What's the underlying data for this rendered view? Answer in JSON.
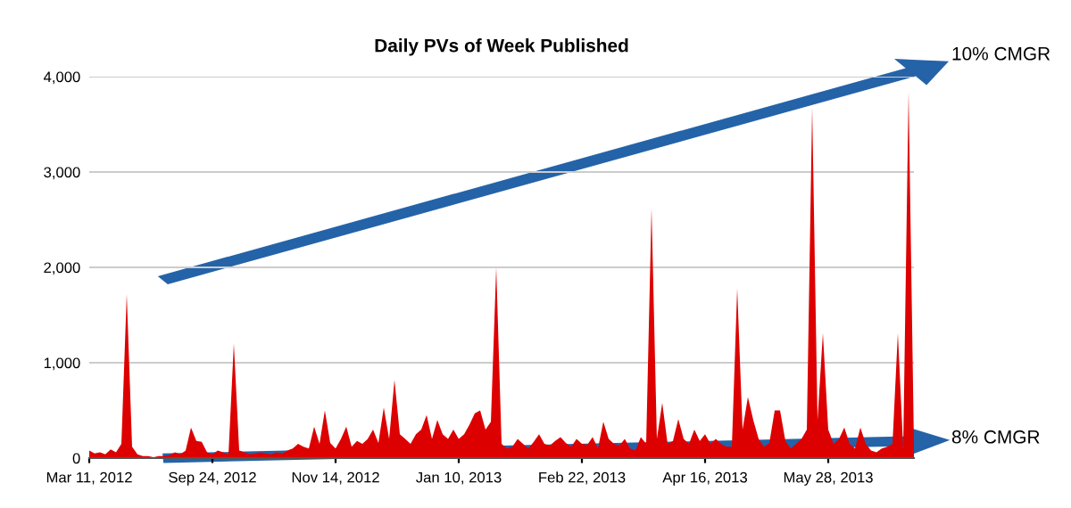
{
  "chart_data": {
    "type": "area",
    "title": "Daily PVs of Week Published",
    "categories": [
      "Mar 11, 2012",
      null,
      null,
      null,
      null,
      null,
      null,
      null,
      null,
      null,
      null,
      null,
      null,
      null,
      null,
      null,
      null,
      null,
      null,
      null,
      null,
      null,
      null,
      "Sep 24, 2012",
      null,
      null,
      null,
      null,
      null,
      null,
      null,
      null,
      null,
      null,
      null,
      null,
      null,
      null,
      null,
      null,
      null,
      null,
      null,
      null,
      null,
      null,
      "Nov 14, 2012",
      null,
      null,
      null,
      null,
      null,
      null,
      null,
      null,
      null,
      null,
      null,
      null,
      null,
      null,
      null,
      null,
      null,
      null,
      null,
      null,
      null,
      null,
      "Jan 10, 2013",
      null,
      null,
      null,
      null,
      null,
      null,
      null,
      null,
      null,
      null,
      null,
      null,
      null,
      null,
      null,
      null,
      null,
      null,
      null,
      null,
      null,
      null,
      "Feb 22, 2013",
      null,
      null,
      null,
      null,
      null,
      null,
      null,
      null,
      null,
      null,
      null,
      null,
      null,
      null,
      null,
      null,
      null,
      null,
      null,
      null,
      null,
      null,
      "Apr 16, 2013",
      null,
      null,
      null,
      null,
      null,
      null,
      null,
      null,
      null,
      null,
      null,
      null,
      null,
      null,
      null,
      null,
      null,
      null,
      null,
      null,
      null,
      null,
      "May 28, 2013",
      null,
      null,
      null,
      null,
      null,
      null,
      null,
      null,
      null,
      null,
      null,
      null,
      null,
      null,
      null,
      null
    ],
    "series": [
      {
        "color": "#dd0000",
        "values": [
          80,
          50,
          60,
          40,
          90,
          60,
          150,
          1720,
          120,
          40,
          20,
          20,
          10,
          20,
          20,
          30,
          60,
          40,
          80,
          320,
          180,
          170,
          60,
          40,
          80,
          60,
          40,
          1200,
          80,
          60,
          40,
          50,
          60,
          50,
          40,
          60,
          50,
          80,
          100,
          150,
          120,
          100,
          330,
          150,
          500,
          160,
          100,
          200,
          330,
          120,
          180,
          150,
          200,
          300,
          160,
          530,
          200,
          820,
          250,
          200,
          150,
          250,
          300,
          450,
          200,
          400,
          250,
          200,
          300,
          200,
          250,
          350,
          470,
          500,
          300,
          380,
          2000,
          150,
          100,
          120,
          200,
          150,
          100,
          170,
          250,
          150,
          130,
          180,
          220,
          160,
          120,
          200,
          150,
          140,
          220,
          100,
          380,
          200,
          150,
          130,
          200,
          100,
          80,
          220,
          150,
          2620,
          200,
          580,
          150,
          180,
          410,
          200,
          150,
          300,
          180,
          250,
          150,
          200,
          150,
          120,
          120,
          1780,
          300,
          640,
          400,
          200,
          120,
          160,
          500,
          500,
          180,
          100,
          150,
          200,
          300,
          3680,
          400,
          1310,
          300,
          150,
          200,
          320,
          150,
          100,
          320,
          150,
          80,
          60,
          100,
          120,
          150,
          1310,
          100,
          3840,
          150
        ]
      }
    ],
    "ylim": [
      0,
      4000
    ],
    "yticks": [
      {
        "value": 0,
        "label": "0"
      },
      {
        "value": 1000,
        "label": "1,000"
      },
      {
        "value": 2000,
        "label": "2,000"
      },
      {
        "value": 3000,
        "label": "3,000"
      },
      {
        "value": 4000,
        "label": "4,000"
      }
    ],
    "grid": "y",
    "annotations": [
      "10% CMGR",
      "8% CMGR"
    ]
  }
}
